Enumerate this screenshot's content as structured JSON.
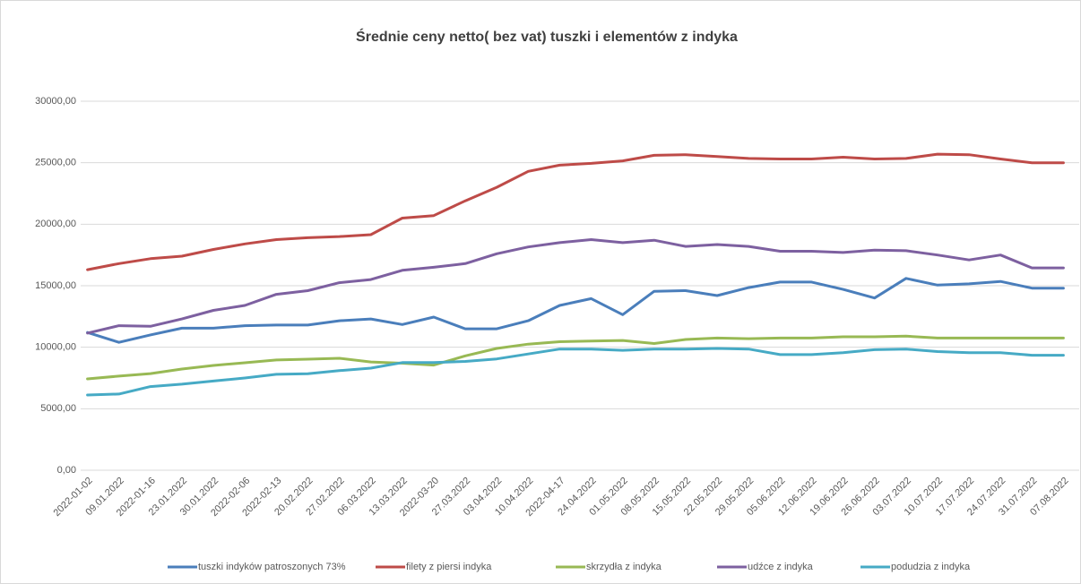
{
  "chart_data": {
    "type": "line",
    "title": "Średnie ceny netto( bez vat) tuszki i elementów z indyka",
    "categories": [
      "2022-01-02",
      "09.01.2022",
      "2022-01-16",
      "23.01.2022",
      "30.01.2022",
      "2022-02-06",
      "2022-02-13",
      "20.02.2022",
      "27.02.2022",
      "06.03.2022",
      "13.03.2022",
      "2022-03-20",
      "27.03.2022",
      "03.04.2022",
      "10.04.2022",
      "2022-04-17",
      "24.04.2022",
      "01.05.2022",
      "08.05.2022",
      "15.05.2022",
      "22.05.2022",
      "29.05.2022",
      "05.06.2022",
      "12.06.2022",
      "19.06.2022",
      "26.06.2022",
      "03.07.2022",
      "10.07.2022",
      "17.07.2022",
      "24.07.2022",
      "31.07.2022",
      "07.08.2022"
    ],
    "series": [
      {
        "name": "tuszki indyków patroszonych 73%",
        "color": "#4a7ebb",
        "values": [
          11200,
          10400,
          11000,
          11550,
          11550,
          11750,
          11800,
          11800,
          12150,
          12300,
          11850,
          12450,
          11500,
          11500,
          12150,
          13400,
          13950,
          12650,
          14550,
          14600,
          14200,
          14850,
          15300,
          15300,
          14700,
          14000,
          15600,
          15050,
          15150,
          15350,
          14800,
          14800
        ]
      },
      {
        "name": "filety z piersi indyka",
        "color": "#be4b48",
        "values": [
          16300,
          16800,
          17200,
          17400,
          17950,
          18400,
          18750,
          18900,
          19000,
          19150,
          20500,
          20700,
          21900,
          23000,
          24300,
          24800,
          24950,
          25150,
          25600,
          25650,
          25500,
          25350,
          25300,
          25300,
          25450,
          25300,
          25350,
          25700,
          25650,
          25300,
          25000,
          25000
        ]
      },
      {
        "name": "skrzydła z indyka",
        "color": "#98b954",
        "values": [
          7430,
          7650,
          7860,
          8230,
          8520,
          8740,
          8960,
          9030,
          9100,
          8800,
          8700,
          8550,
          9300,
          9900,
          10250,
          10450,
          10500,
          10550,
          10300,
          10630,
          10750,
          10700,
          10750,
          10750,
          10850,
          10850,
          10900,
          10750,
          10750,
          10750,
          10750,
          10750
        ]
      },
      {
        "name": "udźce z indyka",
        "color": "#7d60a0",
        "values": [
          11150,
          11750,
          11700,
          12300,
          13000,
          13400,
          14300,
          14600,
          15250,
          15500,
          16250,
          16500,
          16800,
          17600,
          18150,
          18500,
          18750,
          18500,
          18700,
          18200,
          18350,
          18200,
          17800,
          17800,
          17700,
          17900,
          17850,
          17500,
          17100,
          17500,
          16450,
          16450
        ]
      },
      {
        "name": "podudzia z indyka",
        "color": "#46aac5",
        "values": [
          6120,
          6200,
          6800,
          7000,
          7250,
          7500,
          7800,
          7850,
          8100,
          8300,
          8750,
          8750,
          8850,
          9050,
          9450,
          9850,
          9850,
          9750,
          9850,
          9850,
          9900,
          9850,
          9400,
          9400,
          9550,
          9800,
          9850,
          9650,
          9550,
          9550,
          9350,
          9350
        ]
      }
    ],
    "ylim": [
      0,
      30000
    ],
    "yticks": [
      {
        "value": 0,
        "label": "0,00"
      },
      {
        "value": 5000,
        "label": "5000,00"
      },
      {
        "value": 10000,
        "label": "10000,00"
      },
      {
        "value": 15000,
        "label": "15000,00"
      },
      {
        "value": 20000,
        "label": "20000,00"
      },
      {
        "value": 25000,
        "label": "25000,00"
      },
      {
        "value": 30000,
        "label": "30000,00"
      }
    ],
    "grid": true,
    "legend": "bottom"
  }
}
